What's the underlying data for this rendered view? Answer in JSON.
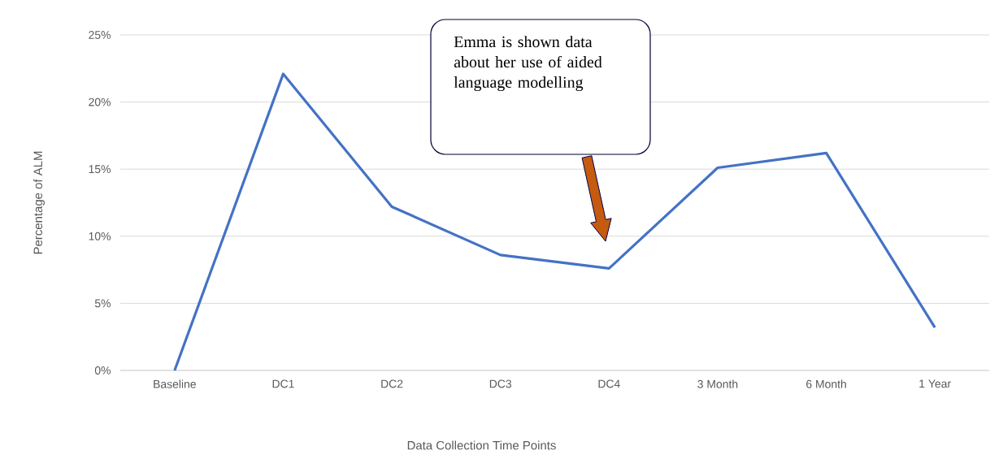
{
  "chart_data": {
    "type": "line",
    "xlabel": "Data Collection Time Points",
    "ylabel": "Percentage of ALM",
    "categories": [
      "Baseline",
      "DC1",
      "DC2",
      "DC3",
      "DC4",
      "3 Month",
      "6 Month",
      "1 Year"
    ],
    "values": [
      0,
      22.1,
      12.2,
      8.6,
      7.6,
      15.1,
      16.2,
      3.2
    ],
    "color": "#4472c4",
    "ylim": [
      0,
      25
    ],
    "yticks": [
      {
        "value": 0,
        "label": "0%"
      },
      {
        "value": 5,
        "label": "5%"
      },
      {
        "value": 10,
        "label": "10%"
      },
      {
        "value": 15,
        "label": "15%"
      },
      {
        "value": 20,
        "label": "20%"
      },
      {
        "value": 25,
        "label": "25%"
      }
    ],
    "grid": "y",
    "marker": "none",
    "line_style": "solid",
    "annotations": [
      "Emma is shown data about her use of aided language modelling"
    ]
  }
}
